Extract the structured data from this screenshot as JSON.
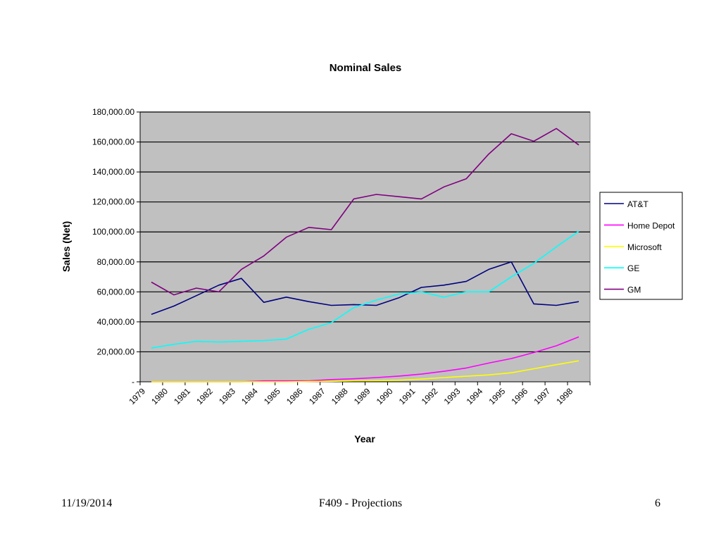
{
  "slide": {
    "date": "11/19/2014",
    "footer_title": "F409 - Projections",
    "page_number": "6"
  },
  "chart_data": {
    "type": "line",
    "title": "Nominal Sales",
    "xlabel": "Year",
    "ylabel": "Sales (Net)",
    "categories": [
      "1979",
      "1980",
      "1981",
      "1982",
      "1983",
      "1984",
      "1985",
      "1986",
      "1987",
      "1988",
      "1989",
      "1990",
      "1991",
      "1992",
      "1993",
      "1994",
      "1995",
      "1996",
      "1997",
      "1998"
    ],
    "ylim": [
      0,
      180000
    ],
    "yticks": [
      0,
      20000,
      40000,
      60000,
      80000,
      100000,
      120000,
      140000,
      160000,
      180000
    ],
    "ytick_labels": [
      "-",
      "20,000.00",
      "40,000.00",
      "60,000.00",
      "80,000.00",
      "100,000.00",
      "120,000.00",
      "140,000.00",
      "160,000.00",
      "180,000.00"
    ],
    "grid": "horizontal",
    "plot_background": "#c0c0c0",
    "legend_position": "right",
    "series": [
      {
        "name": "AT&T",
        "color": "#000080",
        "values": [
          45000,
          50500,
          57500,
          64500,
          69000,
          53000,
          56500,
          53500,
          51000,
          51500,
          51000,
          56000,
          63000,
          64500,
          67000,
          75000,
          80000,
          52000,
          51000,
          53500
        ]
      },
      {
        "name": "Home Depot",
        "color": "#ff00ff",
        "values": [
          0,
          0,
          0,
          0,
          0,
          600,
          600,
          600,
          1500,
          2000,
          2800,
          3800,
          5100,
          7000,
          9200,
          12500,
          15500,
          19500,
          24000,
          30000
        ]
      },
      {
        "name": "Microsoft",
        "color": "#ffff00",
        "values": [
          0,
          0,
          0,
          0,
          0,
          0,
          0,
          200,
          350,
          600,
          800,
          1100,
          1800,
          2800,
          3700,
          4600,
          6000,
          8700,
          11400,
          14000
        ]
      },
      {
        "name": "GE",
        "color": "#00ffff",
        "values": [
          22500,
          25000,
          27000,
          26500,
          27000,
          27500,
          28500,
          35000,
          39500,
          49500,
          54500,
          58500,
          60000,
          56500,
          60000,
          60000,
          70000,
          79000,
          90000,
          100500
        ]
      },
      {
        "name": "GM",
        "color": "#800080",
        "values": [
          66500,
          58000,
          62500,
          60000,
          75000,
          84000,
          96500,
          103000,
          101500,
          122000,
          125000,
          123500,
          122000,
          130000,
          135500,
          152000,
          165500,
          160500,
          169000,
          158000
        ]
      }
    ]
  }
}
